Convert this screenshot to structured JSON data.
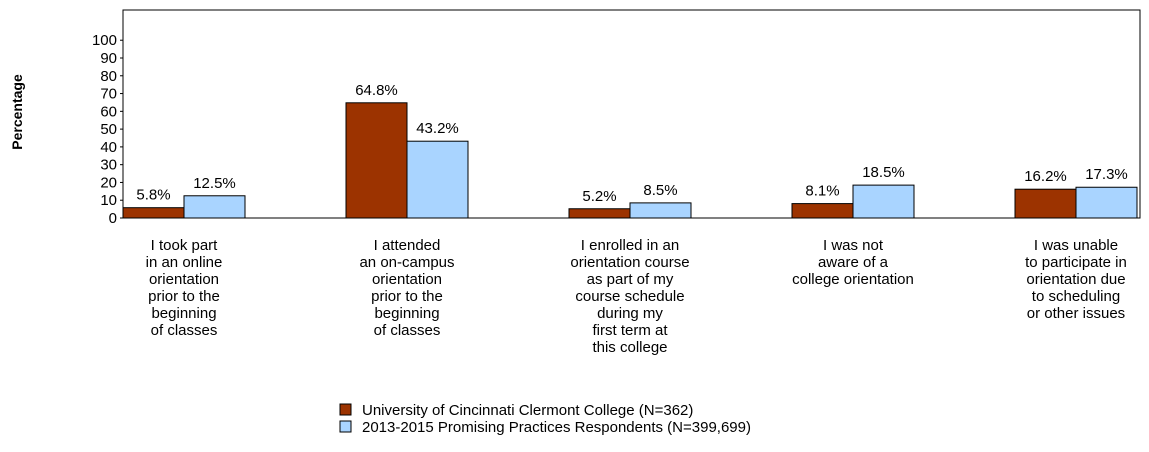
{
  "chart_data": {
    "type": "bar",
    "y_label": "Percentage",
    "categories": [
      "I took part\nin an online\norientation\nprior to the\nbeginning\nof classes",
      "I attended\nan on-campus\norientation\nprior to the\nbeginning\nof classes",
      "I enrolled in an\norientation course\nas part of my\ncourse schedule\nduring my\nfirst term at\nthis college",
      "I was not\naware of a\ncollege orientation",
      "I was unable\nto participate in\norientation due\nto scheduling\nor other issues"
    ],
    "series": [
      {
        "name": "University of Cincinnati Clermont College (N=362)",
        "color": "#9c3300",
        "values": [
          5.8,
          64.8,
          5.2,
          8.1,
          16.2
        ],
        "value_labels": [
          "5.8%",
          "64.8%",
          "5.2%",
          "8.1%",
          "16.2%"
        ]
      },
      {
        "name": "2013-2015 Promising Practices Respondents (N=399,699)",
        "color": "#a9d4ff",
        "values": [
          12.5,
          43.2,
          8.5,
          18.5,
          17.3
        ],
        "value_labels": [
          "12.5%",
          "43.2%",
          "8.5%",
          "18.5%",
          "17.3%"
        ]
      }
    ],
    "ylim": [
      0,
      117
    ],
    "yticks": [
      0,
      10,
      20,
      30,
      40,
      50,
      60,
      70,
      80,
      90,
      100
    ]
  }
}
